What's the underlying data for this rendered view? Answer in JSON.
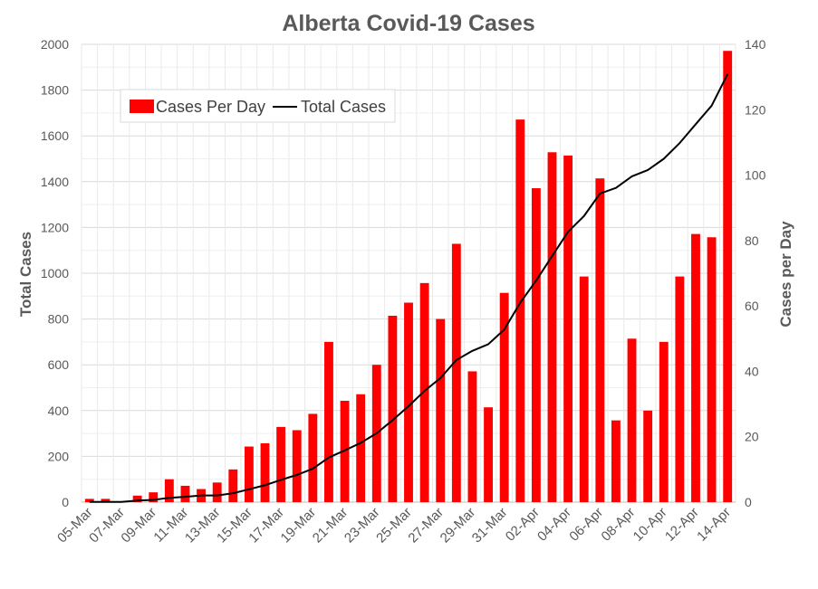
{
  "chart_data": {
    "type": "bar",
    "title": "Alberta Covid-19 Cases",
    "categories": [
      "05-Mar",
      "06-Mar",
      "07-Mar",
      "08-Mar",
      "09-Mar",
      "10-Mar",
      "11-Mar",
      "12-Mar",
      "13-Mar",
      "14-Mar",
      "15-Mar",
      "16-Mar",
      "17-Mar",
      "18-Mar",
      "19-Mar",
      "20-Mar",
      "21-Mar",
      "22-Mar",
      "23-Mar",
      "24-Mar",
      "25-Mar",
      "26-Mar",
      "27-Mar",
      "28-Mar",
      "29-Mar",
      "30-Mar",
      "31-Mar",
      "01-Apr",
      "02-Apr",
      "03-Apr",
      "04-Apr",
      "05-Apr",
      "06-Apr",
      "07-Apr",
      "08-Apr",
      "09-Apr",
      "10-Apr",
      "11-Apr",
      "12-Apr",
      "13-Apr",
      "14-Apr"
    ],
    "tick_labels": [
      "05-Mar",
      "07-Mar",
      "09-Mar",
      "11-Mar",
      "13-Mar",
      "15-Mar",
      "17-Mar",
      "19-Mar",
      "21-Mar",
      "23-Mar",
      "25-Mar",
      "27-Mar",
      "29-Mar",
      "31-Mar",
      "02-Apr",
      "04-Apr",
      "06-Apr",
      "08-Apr",
      "10-Apr",
      "12-Apr",
      "14-Apr"
    ],
    "series": [
      {
        "name": "Cases Per Day",
        "kind": "bar",
        "axis": "right",
        "color": "#ff0000",
        "values": [
          1,
          1,
          0,
          2,
          3,
          7,
          5,
          4,
          6,
          10,
          17,
          18,
          23,
          22,
          27,
          49,
          31,
          33,
          42,
          57,
          61,
          67,
          56,
          79,
          40,
          29,
          64,
          117,
          96,
          107,
          106,
          69,
          99,
          25,
          50,
          28,
          49,
          69,
          82,
          81,
          138
        ]
      },
      {
        "name": "Total Cases",
        "kind": "line",
        "axis": "left",
        "color": "#000000",
        "values": [
          1,
          1,
          1,
          7,
          10,
          19,
          23,
          29,
          29,
          39,
          56,
          74,
          97,
          119,
          146,
          195,
          226,
          259,
          301,
          358,
          419,
          486,
          542,
          621,
          661,
          690,
          754,
          871,
          968,
          1075,
          1181,
          1250,
          1348,
          1373,
          1423,
          1451,
          1500,
          1569,
          1651,
          1732,
          1870
        ]
      }
    ],
    "left_axis": {
      "label": "Total Cases",
      "min": 0,
      "max": 2000,
      "step": 200
    },
    "right_axis": {
      "label": "Cases per Day",
      "min": 0,
      "max": 140,
      "step": 20
    },
    "grid": true,
    "legend": {
      "position": "top-left",
      "entries": [
        "Cases Per Day",
        "Total Cases"
      ]
    }
  }
}
